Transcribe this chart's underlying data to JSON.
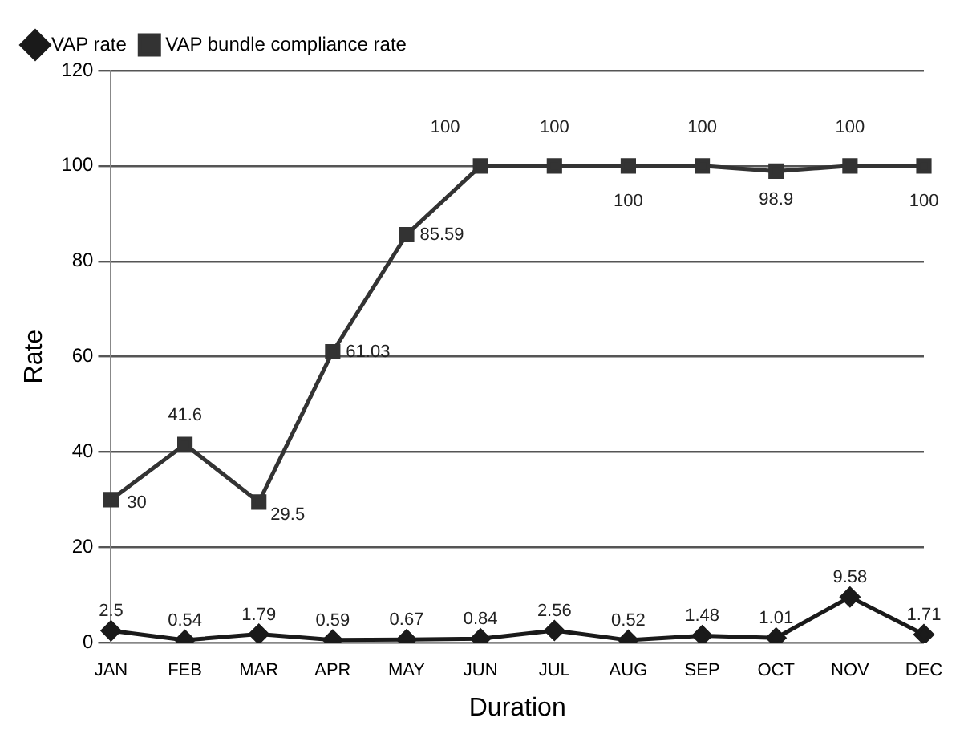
{
  "chart_data": {
    "type": "line",
    "xlabel": "Duration",
    "ylabel": "Rate",
    "categories": [
      "JAN",
      "FEB",
      "MAR",
      "APR",
      "MAY",
      "JUN",
      "JUL",
      "AUG",
      "SEP",
      "OCT",
      "NOV",
      "DEC"
    ],
    "series": [
      {
        "name": "VAP rate",
        "color": "#1a1a1a",
        "marker": "diamond",
        "values": [
          2.5,
          0.54,
          1.79,
          0.59,
          0.67,
          0.84,
          2.56,
          0.52,
          1.48,
          1.01,
          9.58,
          1.71
        ]
      },
      {
        "name": "VAP bundle compliance rate",
        "color": "#333333",
        "marker": "square",
        "values": [
          30,
          41.6,
          29.5,
          61.03,
          85.59,
          100,
          100,
          100,
          100,
          98.9,
          100,
          100
        ]
      }
    ],
    "ylim": [
      0,
      120
    ],
    "yticks": [
      0,
      20,
      40,
      60,
      80,
      100,
      120
    ],
    "grid": "y",
    "legend": "top left",
    "data_labels": true,
    "line_style": "solid"
  }
}
